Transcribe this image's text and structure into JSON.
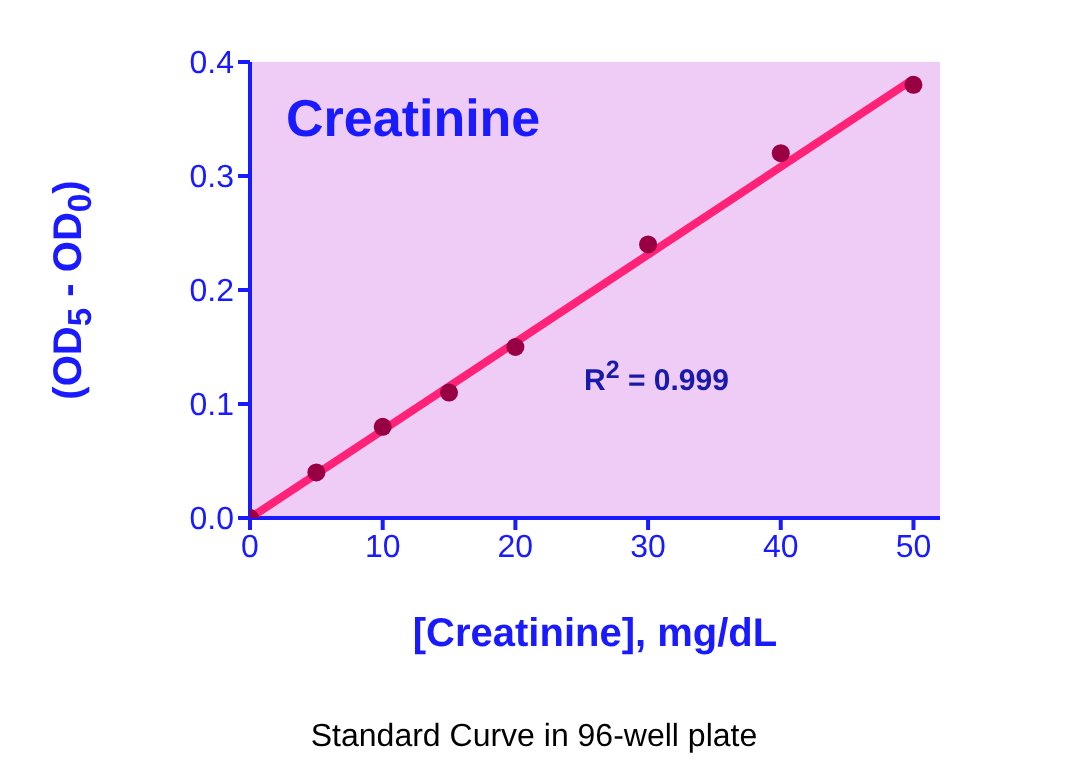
{
  "chart_data": {
    "type": "scatter",
    "title": "Creatinine",
    "xlabel": "[Creatinine], mg/dL",
    "ylabel": "(OD$_{5}$ - OD$_{0}$)",
    "annotations": [
      "R$^{2}$ = 0.999",
      "Standard Curve in 96-well plate"
    ],
    "xlim": [
      0,
      52
    ],
    "xticks": [
      0,
      10,
      20,
      30,
      40,
      50
    ],
    "ylim": [
      0,
      0.4
    ],
    "yticks": [
      {
        "value": 0,
        "label": "0.0"
      },
      {
        "value": 0.1,
        "label": "0.1"
      },
      {
        "value": 0.2,
        "label": "0.2"
      },
      {
        "value": 0.3,
        "label": "0.3"
      },
      {
        "value": 0.4,
        "label": "0.4"
      }
    ],
    "marker": "circle",
    "series": [
      {
        "type": "line",
        "marker": "none",
        "color": "#ff2277",
        "x": [
          0,
          50
        ],
        "values": [
          0,
          0.385
        ]
      },
      {
        "color": "#990044",
        "x": [
          0,
          5,
          10,
          15,
          20,
          30,
          40,
          50
        ],
        "values": [
          0,
          0.04,
          0.08,
          0.11,
          0.15,
          0.24,
          0.32,
          0.38
        ]
      }
    ]
  }
}
